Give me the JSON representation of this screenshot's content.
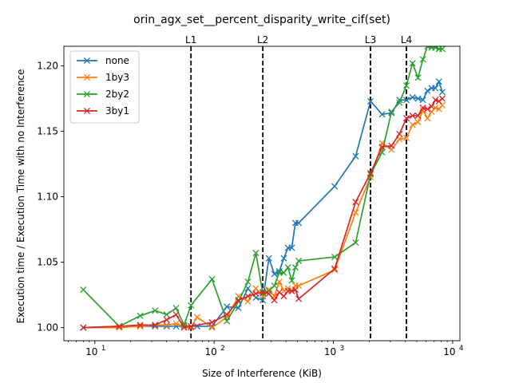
{
  "chart_data": {
    "type": "line",
    "title": "orin_agx_set__percent_disparity_write_cif(set)",
    "xlabel": "Size of Interference (KiB)",
    "ylabel": "Execution time / Execution Time with no Interference",
    "xscale": "log",
    "xlim": [
      5.5,
      11500
    ],
    "ylim": [
      0.99,
      1.215
    ],
    "x_ticks": [
      10,
      100,
      1000,
      10000
    ],
    "x_tick_labels": [
      {
        "base": "10",
        "exp": "1"
      },
      {
        "base": "10",
        "exp": "2"
      },
      {
        "base": "10",
        "exp": "3"
      },
      {
        "base": "10",
        "exp": "4"
      }
    ],
    "y_ticks": [
      1.0,
      1.05,
      1.1,
      1.15,
      1.2
    ],
    "y_tick_labels": [
      "1.00",
      "1.05",
      "1.10",
      "1.15",
      "1.20"
    ],
    "grid": false,
    "legend_position": "top-left",
    "vlines": [
      {
        "label": "L1",
        "x": 64
      },
      {
        "label": "L2",
        "x": 256
      },
      {
        "label": "L3",
        "x": 2048
      },
      {
        "label": "L4",
        "x": 4096
      }
    ],
    "series": [
      {
        "name": "none",
        "color": "#1f77b4",
        "points": [
          [
            8,
            1.0
          ],
          [
            16,
            1.001
          ],
          [
            24,
            1.001
          ],
          [
            32,
            1.001
          ],
          [
            40,
            1.001
          ],
          [
            48,
            1.001
          ],
          [
            56,
            1.001
          ],
          [
            64,
            1.001
          ],
          [
            72,
            1.001
          ],
          [
            96,
            1.001
          ],
          [
            128,
            1.016
          ],
          [
            160,
            1.015
          ],
          [
            192,
            1.03
          ],
          [
            224,
            1.023
          ],
          [
            256,
            1.021
          ],
          [
            288,
            1.053
          ],
          [
            320,
            1.041
          ],
          [
            352,
            1.043
          ],
          [
            384,
            1.053
          ],
          [
            416,
            1.061
          ],
          [
            448,
            1.061
          ],
          [
            480,
            1.08
          ],
          [
            512,
            1.08
          ],
          [
            1024,
            1.108
          ],
          [
            1536,
            1.131
          ],
          [
            2048,
            1.173
          ],
          [
            2560,
            1.163
          ],
          [
            3072,
            1.164
          ],
          [
            3584,
            1.174
          ],
          [
            4096,
            1.174
          ],
          [
            4608,
            1.176
          ],
          [
            5120,
            1.175
          ],
          [
            5632,
            1.174
          ],
          [
            6144,
            1.181
          ],
          [
            6656,
            1.183
          ],
          [
            7168,
            1.183
          ],
          [
            7680,
            1.188
          ],
          [
            8192,
            1.18
          ]
        ]
      },
      {
        "name": "1by3",
        "color": "#ff7f0e",
        "points": [
          [
            8,
            1.0
          ],
          [
            16,
            1.0
          ],
          [
            24,
            1.001
          ],
          [
            32,
            1.002
          ],
          [
            40,
            1.002
          ],
          [
            48,
            1.003
          ],
          [
            56,
            1.001
          ],
          [
            64,
            1.0
          ],
          [
            72,
            1.008
          ],
          [
            96,
            1.0
          ],
          [
            128,
            1.008
          ],
          [
            160,
            1.024
          ],
          [
            192,
            1.02
          ],
          [
            224,
            1.03
          ],
          [
            256,
            1.024
          ],
          [
            288,
            1.029
          ],
          [
            320,
            1.024
          ],
          [
            352,
            1.035
          ],
          [
            384,
            1.028
          ],
          [
            416,
            1.03
          ],
          [
            448,
            1.028
          ],
          [
            480,
            1.032
          ],
          [
            512,
            1.032
          ],
          [
            1024,
            1.044
          ],
          [
            1536,
            1.088
          ],
          [
            2048,
            1.115
          ],
          [
            2560,
            1.141
          ],
          [
            3072,
            1.136
          ],
          [
            3584,
            1.144
          ],
          [
            4096,
            1.145
          ],
          [
            4608,
            1.155
          ],
          [
            5120,
            1.157
          ],
          [
            5632,
            1.166
          ],
          [
            6144,
            1.16
          ],
          [
            6656,
            1.165
          ],
          [
            7168,
            1.168
          ],
          [
            7680,
            1.167
          ],
          [
            8192,
            1.17
          ]
        ]
      },
      {
        "name": "2by2",
        "color": "#2ca02c",
        "points": [
          [
            8,
            1.029
          ],
          [
            16,
            1.001
          ],
          [
            24,
            1.009
          ],
          [
            32,
            1.013
          ],
          [
            40,
            1.01
          ],
          [
            48,
            1.015
          ],
          [
            56,
            1.002
          ],
          [
            64,
            1.017
          ],
          [
            96,
            1.037
          ],
          [
            128,
            1.005
          ],
          [
            160,
            1.02
          ],
          [
            192,
            1.035
          ],
          [
            224,
            1.057
          ],
          [
            256,
            1.026
          ],
          [
            288,
            1.028
          ],
          [
            320,
            1.032
          ],
          [
            352,
            1.042
          ],
          [
            384,
            1.042
          ],
          [
            416,
            1.046
          ],
          [
            448,
            1.036
          ],
          [
            480,
            1.046
          ],
          [
            512,
            1.051
          ],
          [
            1024,
            1.054
          ],
          [
            1536,
            1.065
          ],
          [
            2048,
            1.117
          ],
          [
            2560,
            1.134
          ],
          [
            3072,
            1.165
          ],
          [
            3584,
            1.172
          ],
          [
            4096,
            1.185
          ],
          [
            4608,
            1.202
          ],
          [
            5120,
            1.191
          ],
          [
            5632,
            1.205
          ],
          [
            6144,
            1.215
          ],
          [
            6656,
            1.214
          ],
          [
            7168,
            1.214
          ],
          [
            7680,
            1.213
          ],
          [
            8192,
            1.213
          ]
        ]
      },
      {
        "name": "3by1",
        "color": "#d62728",
        "points": [
          [
            8,
            1.0
          ],
          [
            16,
            1.001
          ],
          [
            24,
            1.002
          ],
          [
            32,
            1.002
          ],
          [
            40,
            1.006
          ],
          [
            48,
            1.01
          ],
          [
            56,
            1.0
          ],
          [
            64,
            1.001
          ],
          [
            96,
            1.004
          ],
          [
            128,
            1.01
          ],
          [
            160,
            1.021
          ],
          [
            192,
            1.024
          ],
          [
            224,
            1.026
          ],
          [
            256,
            1.027
          ],
          [
            288,
            1.026
          ],
          [
            320,
            1.021
          ],
          [
            352,
            1.027
          ],
          [
            384,
            1.024
          ],
          [
            416,
            1.028
          ],
          [
            448,
            1.028
          ],
          [
            480,
            1.029
          ],
          [
            512,
            1.022
          ],
          [
            1024,
            1.045
          ],
          [
            1536,
            1.096
          ],
          [
            2048,
            1.118
          ],
          [
            2560,
            1.138
          ],
          [
            3072,
            1.139
          ],
          [
            3584,
            1.148
          ],
          [
            4096,
            1.16
          ],
          [
            4608,
            1.162
          ],
          [
            5120,
            1.162
          ],
          [
            5632,
            1.168
          ],
          [
            6144,
            1.167
          ],
          [
            6656,
            1.169
          ],
          [
            7168,
            1.174
          ],
          [
            7680,
            1.173
          ],
          [
            8192,
            1.175
          ]
        ]
      }
    ]
  }
}
